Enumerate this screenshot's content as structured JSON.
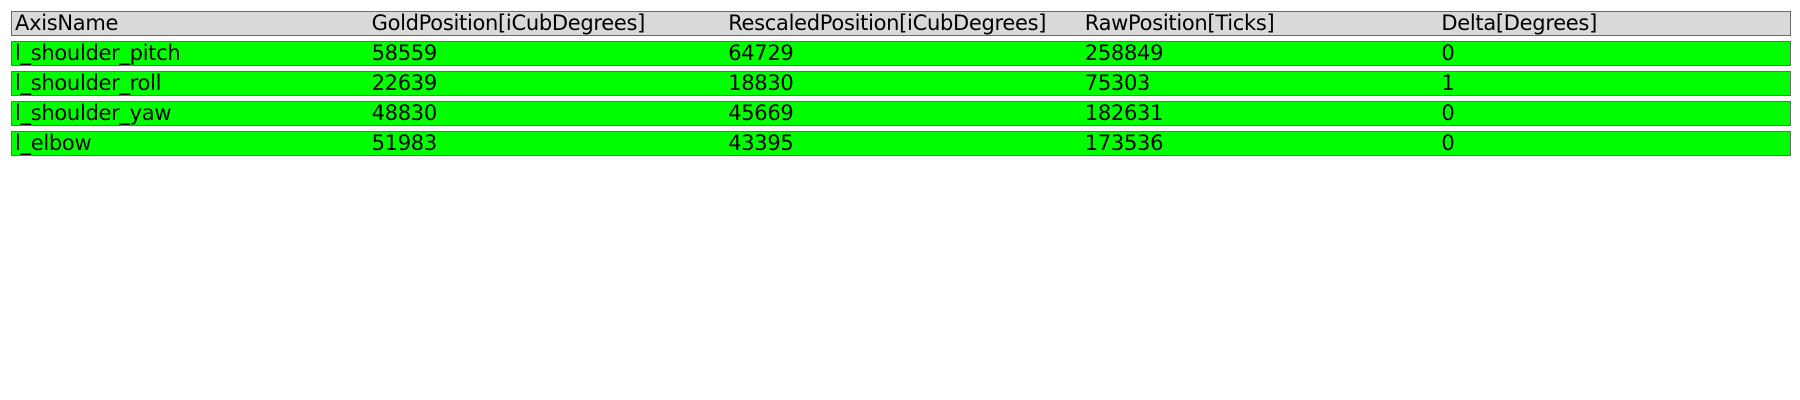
{
  "table": {
    "headers": [
      "AxisName",
      "GoldPosition[iCubDegrees]",
      "RescaledPosition[iCubDegrees]",
      "RawPosition[Ticks]",
      "Delta[Degrees]"
    ],
    "rows": [
      [
        "l_shoulder_pitch",
        "58559",
        "64729",
        "258849",
        "0"
      ],
      [
        "l_shoulder_roll",
        "22639",
        "18830",
        "75303",
        "1"
      ],
      [
        "l_shoulder_yaw",
        "48830",
        "45669",
        "182631",
        "0"
      ],
      [
        "l_elbow",
        "51983",
        "43395",
        "173536",
        "0"
      ]
    ]
  },
  "colors": {
    "header_bg": "#d9d9d9",
    "row_bg": "#00ff00",
    "border": "#6a6a6a"
  }
}
